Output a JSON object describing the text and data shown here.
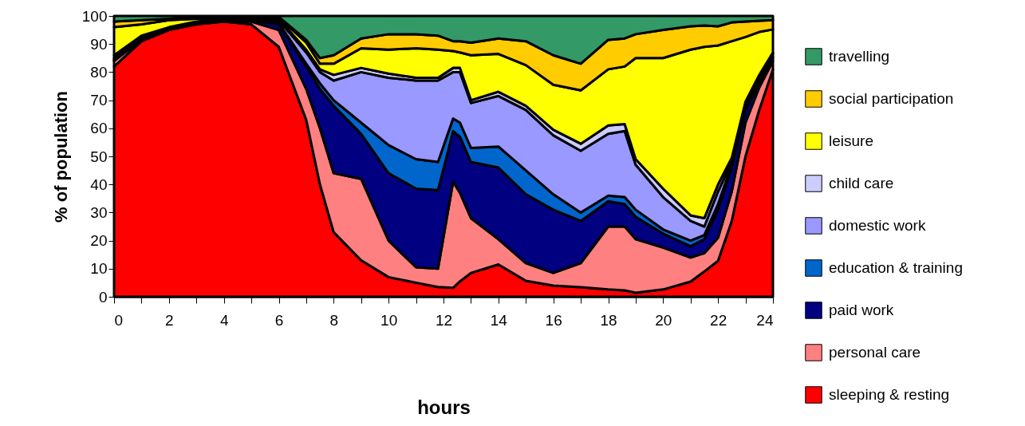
{
  "chart_data": {
    "type": "area",
    "stacked": true,
    "xlabel": "hours",
    "ylabel": "% of population",
    "legend": "right",
    "x": [
      0,
      1,
      2,
      3,
      4,
      5,
      6,
      7,
      7.5,
      8,
      9,
      10,
      11,
      11.8,
      12.35,
      12.6,
      13,
      14,
      15,
      16,
      17,
      18,
      18.6,
      19,
      20,
      21,
      21.5,
      22,
      22.5,
      23,
      23.5,
      24
    ],
    "xlim": [
      0,
      24
    ],
    "xticks": [
      0,
      {
        "value": 1,
        "label": null
      },
      2,
      {
        "value": 3,
        "label": null
      },
      4,
      {
        "value": 5,
        "label": null
      },
      6,
      {
        "value": 7,
        "label": null
      },
      8,
      {
        "value": 9,
        "label": null
      },
      10,
      {
        "value": 11,
        "label": null
      },
      12,
      {
        "value": 13,
        "label": null
      },
      14,
      {
        "value": 15,
        "label": null
      },
      16,
      {
        "value": 17,
        "label": null
      },
      18,
      {
        "value": 19,
        "label": null
      },
      20,
      {
        "value": 21,
        "label": null
      },
      22,
      {
        "value": 23,
        "label": null
      },
      24
    ],
    "ylim": [
      0,
      100
    ],
    "yticks": [
      0,
      10,
      20,
      30,
      40,
      50,
      60,
      70,
      80,
      90,
      100
    ],
    "series": [
      {
        "name": "sleeping & resting",
        "color": "#ff0000",
        "values": [
          82,
          91,
          95,
          97,
          98,
          97,
          89,
          63,
          40,
          23,
          13,
          7,
          5,
          3.5,
          3.2,
          5.5,
          8.5,
          11.5,
          5.7,
          4,
          3.4,
          2.6,
          2.3,
          1.4,
          2.6,
          5.4,
          9,
          12.8,
          27,
          50,
          66.5,
          81
        ]
      },
      {
        "name": "personal care",
        "color": "#ff8080",
        "values": [
          2,
          0.5,
          0.3,
          0.2,
          0.2,
          1,
          6,
          11,
          20,
          21,
          29,
          13,
          5.5,
          6.5,
          37.8,
          31.5,
          19.5,
          9,
          6.3,
          4.5,
          8.6,
          22.4,
          22.7,
          19.1,
          14.9,
          8.6,
          6.5,
          8.2,
          10.5,
          12,
          8,
          3
        ]
      },
      {
        "name": "paid work",
        "color": "#000080",
        "values": [
          0,
          0.2,
          0.2,
          0.1,
          0.1,
          0.5,
          2,
          8,
          14,
          24,
          16,
          24,
          28,
          28,
          18,
          20,
          20,
          25.5,
          24.5,
          22.5,
          15,
          9,
          8,
          8,
          5,
          4,
          5,
          10,
          8.5,
          4.5,
          1.5,
          1
        ]
      },
      {
        "name": "education & training",
        "color": "#0066cc",
        "values": [
          0.5,
          0.2,
          0.1,
          0.1,
          0.1,
          0.1,
          0.5,
          1,
          2,
          2,
          4,
          10,
          10.5,
          10,
          4.5,
          5,
          5,
          7.5,
          8.5,
          5.5,
          3,
          2,
          2.5,
          2.5,
          1.5,
          2,
          1.5,
          2,
          1,
          1,
          1,
          0.5
        ]
      },
      {
        "name": "domestic work",
        "color": "#9999ff",
        "values": [
          0.5,
          0.4,
          0.2,
          0.2,
          0.2,
          0.2,
          1,
          4,
          4,
          7,
          18,
          24,
          28,
          29,
          16.5,
          18,
          16,
          18,
          21.5,
          21,
          22,
          22,
          23.5,
          16,
          11.5,
          7,
          3,
          4.5,
          1,
          1,
          1,
          1
        ]
      },
      {
        "name": "child care",
        "color": "#ccccff",
        "values": [
          1,
          0.7,
          0.2,
          0.4,
          0.4,
          0.2,
          0.5,
          1,
          1,
          2,
          1.5,
          1.5,
          1,
          1,
          1.5,
          1.5,
          1,
          1.5,
          1.5,
          2,
          2.5,
          3,
          2.5,
          2,
          3,
          2,
          3,
          2.5,
          1.5,
          1,
          1,
          0.5
        ]
      },
      {
        "name": "leisure",
        "color": "#ffff00",
        "values": [
          10,
          4,
          2.5,
          1,
          0.5,
          0.5,
          0.5,
          2.5,
          2,
          4,
          7,
          8.5,
          10.5,
          10,
          6,
          5.5,
          16,
          13.5,
          14.5,
          16,
          19,
          20,
          20.5,
          36,
          46.5,
          59,
          61,
          49.5,
          41.5,
          23,
          15.3,
          8.2
        ]
      },
      {
        "name": "social participation",
        "color": "#ffcc00",
        "values": [
          2,
          1.5,
          0.5,
          0.5,
          0.2,
          0.2,
          0.2,
          1,
          2,
          3,
          3.5,
          5.5,
          5,
          5,
          3.5,
          4,
          4.5,
          5.5,
          8.5,
          10.5,
          9.5,
          10.5,
          10,
          8.5,
          10,
          8.3,
          7.6,
          6.8,
          6.7,
          5.5,
          4,
          3.3
        ]
      },
      {
        "name": "travelling",
        "color": "#339966",
        "values": [
          2,
          1.5,
          1,
          0.5,
          0.3,
          0.3,
          0.3,
          8.5,
          15,
          14,
          8,
          6.5,
          6.5,
          7,
          9,
          9,
          9.5,
          8,
          9,
          14,
          17,
          8.5,
          8,
          6.5,
          5,
          3.7,
          3.4,
          3.7,
          2.3,
          2,
          1.7,
          1.5
        ]
      }
    ]
  }
}
